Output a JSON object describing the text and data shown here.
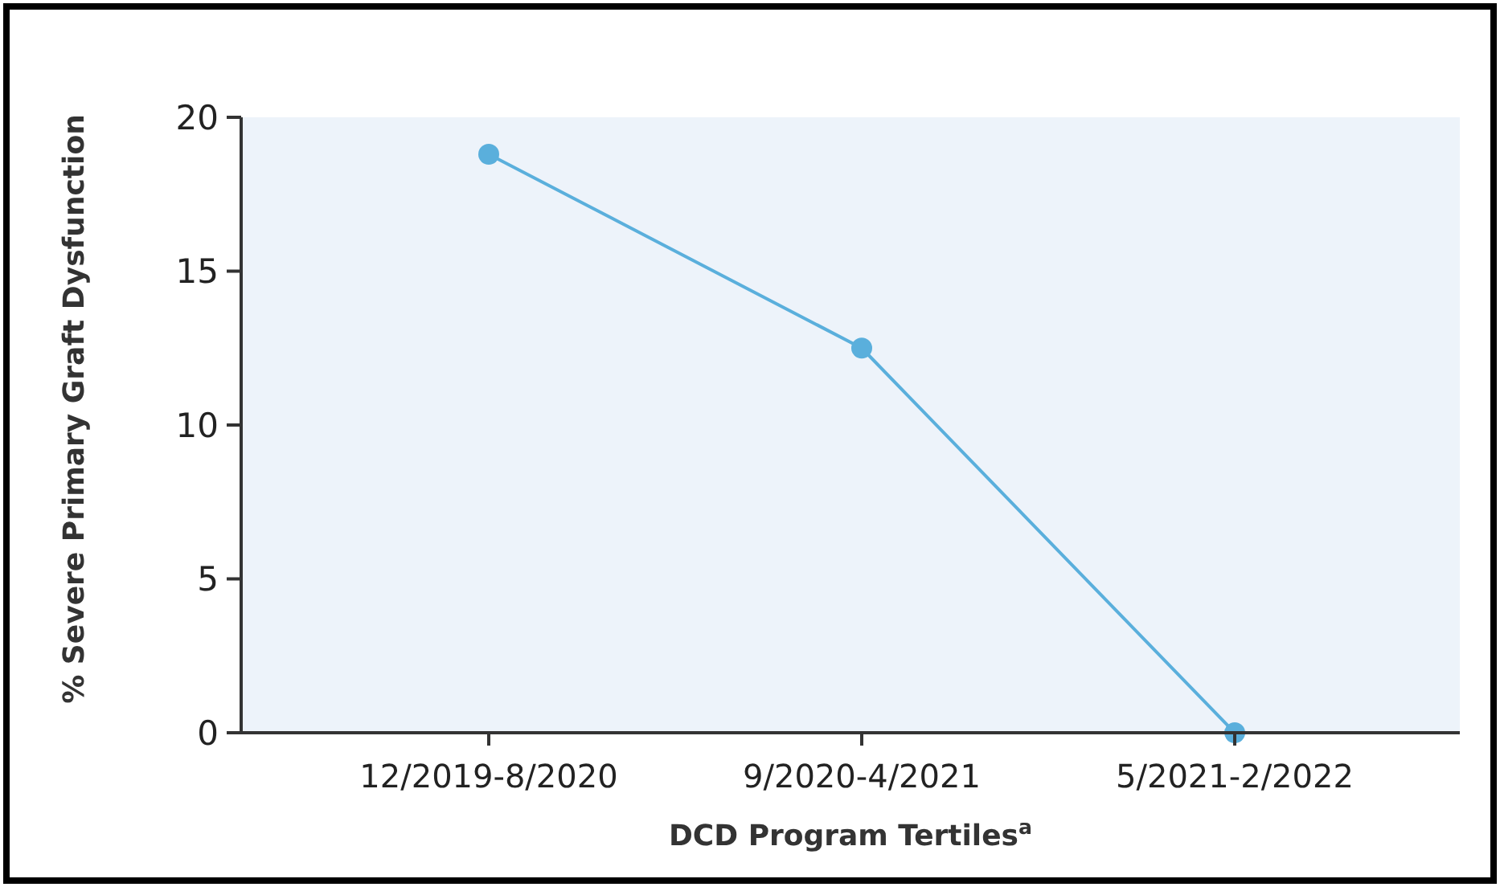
{
  "chart_data": {
    "type": "line",
    "xlabel": "DCD Program Tertiles$^{a}$",
    "ylabel": "% Severe Primary Graft Dysfunction",
    "categories": [
      "12/2019-8/2020",
      "9/2020-4/2021",
      "5/2021-2/2022"
    ],
    "series": [
      {
        "color": "#5aafdc",
        "values": [
          18.8,
          12.5,
          0
        ]
      }
    ],
    "ylim": [
      0,
      20
    ],
    "yticks": [
      0,
      5,
      10,
      15,
      20
    ],
    "marker": "circle",
    "line_style": "solid",
    "grid": false
  }
}
